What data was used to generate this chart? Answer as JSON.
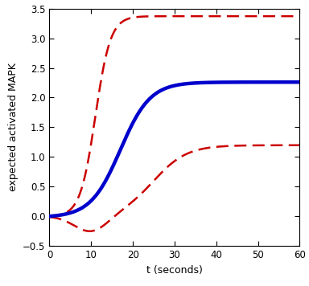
{
  "xlabel": "t (seconds)",
  "ylabel": "expected activated MAPK",
  "xlim": [
    0,
    60
  ],
  "ylim": [
    -0.5,
    3.5
  ],
  "xticks": [
    0,
    10,
    20,
    30,
    40,
    50,
    60
  ],
  "yticks": [
    -0.5,
    0.0,
    0.5,
    1.0,
    1.5,
    2.0,
    2.5,
    3.0,
    3.5
  ],
  "blue_color": "#0000cc",
  "red_color": "#cc0000",
  "blue_linewidth": 3.2,
  "red_linewidth": 1.8,
  "blue_plateau": 2.28,
  "upper_plateau": 3.38,
  "lower_plateau": 1.2,
  "lower_dip": -0.25,
  "lower_dip_t": 10.0,
  "blue_k": 0.28,
  "blue_midpoint": 17,
  "upper_k": 0.55,
  "upper_midpoint": 11,
  "lower_k": 0.25,
  "lower_midpoint": 25
}
